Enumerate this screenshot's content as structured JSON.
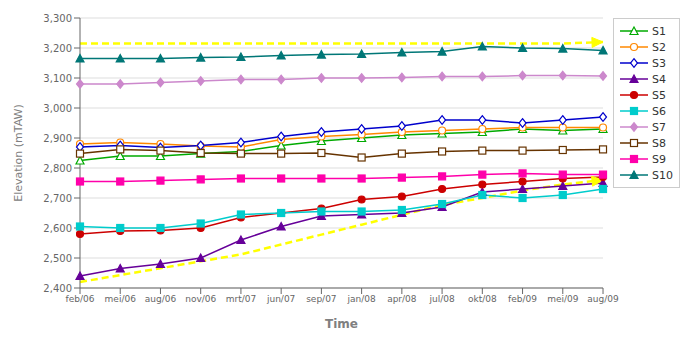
{
  "chart_data": {
    "type": "line",
    "xlabel": "Time",
    "ylabel": "Elevation (mTAW)",
    "categories": [
      "feb/06",
      "mei/06",
      "aug/06",
      "nov/06",
      "mrt/07",
      "jun/07",
      "sep/07",
      "jan/08",
      "apr/08",
      "jul/08",
      "okt/08",
      "feb/09",
      "mei/09",
      "aug/09"
    ],
    "ylim": [
      2400,
      3300
    ],
    "yticks": [
      {
        "value": 2400,
        "label": "2,400"
      },
      {
        "value": 2500,
        "label": "2,500"
      },
      {
        "value": 2600,
        "label": "2,600"
      },
      {
        "value": 2700,
        "label": "2,700"
      },
      {
        "value": 2800,
        "label": "2,800"
      },
      {
        "value": 2900,
        "label": "2,900"
      },
      {
        "value": 3000,
        "label": "3,000"
      },
      {
        "value": 3100,
        "label": "3,100"
      },
      {
        "value": 3200,
        "label": "3,200"
      },
      {
        "value": 3300,
        "label": "3,300"
      }
    ],
    "grid": true,
    "legend": "right",
    "series": [
      {
        "color": "#ffff00",
        "line_style": "dashed",
        "marker": "arrow",
        "values": [
          2420,
          2443,
          2466,
          2489,
          2512,
          2545,
          2578,
          2611,
          2644,
          2677,
          2700,
          2725,
          2745,
          2760
        ]
      },
      {
        "color": "#ffff00",
        "line_style": "dashed",
        "marker": "arrow",
        "values": [
          3215,
          3215,
          3215,
          3215,
          3215,
          3215,
          3215,
          3215,
          3215,
          3215,
          3215,
          3215,
          3215,
          3220
        ]
      },
      {
        "name": "S1",
        "color": "#00aa00",
        "marker": "triangle-open",
        "values": [
          2825,
          2840,
          2840,
          2848,
          2855,
          2875,
          2890,
          2900,
          2910,
          2915,
          2920,
          2930,
          2925,
          2930
        ]
      },
      {
        "name": "S2",
        "color": "#ff8800",
        "marker": "circle-open",
        "values": [
          2880,
          2885,
          2880,
          2873,
          2870,
          2895,
          2905,
          2912,
          2920,
          2925,
          2930,
          2935,
          2935,
          2935
        ]
      },
      {
        "name": "S3",
        "color": "#0000cc",
        "marker": "diamond-open",
        "values": [
          2870,
          2875,
          2868,
          2875,
          2885,
          2905,
          2920,
          2930,
          2940,
          2960,
          2960,
          2950,
          2960,
          2970
        ]
      },
      {
        "name": "S4",
        "color": "#660099",
        "marker": "triangle",
        "values": [
          2440,
          2465,
          2480,
          2500,
          2560,
          2605,
          2640,
          2645,
          2650,
          2670,
          2720,
          2730,
          2740,
          2750
        ]
      },
      {
        "name": "S5",
        "color": "#cc0000",
        "marker": "circle",
        "values": [
          2580,
          2590,
          2592,
          2600,
          2635,
          2650,
          2665,
          2695,
          2705,
          2730,
          2745,
          2755,
          2765,
          2770
        ]
      },
      {
        "name": "S6",
        "color": "#00cccc",
        "marker": "square",
        "values": [
          2605,
          2600,
          2600,
          2615,
          2645,
          2650,
          2655,
          2655,
          2660,
          2680,
          2710,
          2700,
          2710,
          2730
        ]
      },
      {
        "name": "S7",
        "color": "#cc88cc",
        "marker": "diamond",
        "values": [
          3080,
          3080,
          3085,
          3090,
          3095,
          3095,
          3100,
          3100,
          3102,
          3105,
          3105,
          3108,
          3108,
          3107
        ]
      },
      {
        "name": "S8",
        "color": "#663300",
        "marker": "square-open",
        "values": [
          2848,
          2862,
          2858,
          2850,
          2848,
          2848,
          2850,
          2835,
          2848,
          2855,
          2858,
          2858,
          2860,
          2862
        ]
      },
      {
        "name": "S9",
        "color": "#ff00aa",
        "marker": "square",
        "values": [
          2755,
          2755,
          2758,
          2762,
          2765,
          2765,
          2765,
          2765,
          2768,
          2772,
          2778,
          2782,
          2778,
          2778
        ]
      },
      {
        "name": "S10",
        "color": "#007777",
        "marker": "triangle",
        "values": [
          3165,
          3165,
          3165,
          3168,
          3170,
          3175,
          3178,
          3180,
          3185,
          3188,
          3205,
          3200,
          3198,
          3192
        ]
      }
    ]
  }
}
